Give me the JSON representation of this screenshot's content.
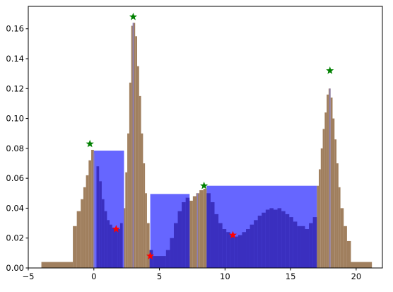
{
  "chart_data": {
    "type": "bar",
    "title": "",
    "xlabel": "",
    "ylabel": "",
    "xlim": [
      -5,
      22
    ],
    "ylim": [
      0,
      0.175
    ],
    "x_ticks": [
      -5,
      0,
      5,
      10,
      15,
      20
    ],
    "y_ticks": [
      0.0,
      0.02,
      0.04,
      0.06,
      0.08,
      0.1,
      0.12,
      0.14,
      0.16
    ],
    "x_tick_labels": [
      "−5",
      "0",
      "5",
      "10",
      "15",
      "20"
    ],
    "y_tick_labels": [
      "0.00",
      "0.02",
      "0.04",
      "0.06",
      "0.08",
      "0.10",
      "0.12",
      "0.14",
      "0.16"
    ],
    "grid": false,
    "colors": {
      "blue_bars": "#0000ff",
      "tan_histogram": "#a0522d",
      "peak_markers": "#008000",
      "valley_markers": "#ff0000"
    },
    "series": [
      {
        "kind": "histogram",
        "color": "#a07f5e",
        "bins": [
          [
            -4.0,
            -1.6,
            0.004
          ],
          [
            -1.6,
            -1.3,
            0.028
          ],
          [
            -1.3,
            -1.0,
            0.038
          ],
          [
            -1.0,
            -0.8,
            0.046
          ],
          [
            -0.8,
            -0.6,
            0.054
          ],
          [
            -0.6,
            -0.4,
            0.062
          ],
          [
            -0.4,
            -0.2,
            0.072
          ],
          [
            -0.2,
            0.0,
            0.079
          ],
          [
            0.0,
            0.2,
            0.077
          ],
          [
            0.2,
            0.4,
            0.068
          ],
          [
            0.4,
            0.6,
            0.058
          ],
          [
            0.6,
            0.8,
            0.046
          ],
          [
            0.8,
            1.0,
            0.038
          ],
          [
            1.0,
            1.2,
            0.032
          ],
          [
            1.2,
            1.4,
            0.029
          ],
          [
            1.4,
            1.6,
            0.027
          ],
          [
            1.6,
            1.8,
            0.025
          ],
          [
            1.8,
            2.0,
            0.026
          ],
          [
            2.0,
            2.2,
            0.03
          ],
          [
            2.2,
            2.4,
            0.04
          ],
          [
            2.4,
            2.55,
            0.064
          ],
          [
            2.55,
            2.7,
            0.09
          ],
          [
            2.7,
            2.85,
            0.124
          ],
          [
            2.85,
            3.0,
            0.162
          ],
          [
            3.0,
            3.15,
            0.164
          ],
          [
            3.15,
            3.3,
            0.155
          ],
          [
            3.3,
            3.45,
            0.135
          ],
          [
            3.45,
            3.6,
            0.115
          ],
          [
            3.6,
            3.75,
            0.09
          ],
          [
            3.75,
            3.9,
            0.07
          ],
          [
            3.9,
            4.05,
            0.05
          ],
          [
            4.05,
            4.25,
            0.03
          ],
          [
            4.25,
            4.5,
            0.012
          ],
          [
            4.5,
            7.3,
            0.008
          ],
          [
            7.3,
            7.55,
            0.045
          ],
          [
            7.55,
            7.8,
            0.048
          ],
          [
            7.8,
            8.05,
            0.05
          ],
          [
            8.05,
            8.35,
            0.052
          ],
          [
            8.35,
            8.6,
            0.053
          ],
          [
            8.6,
            17.0,
            0.004
          ],
          [
            17.0,
            17.15,
            0.055
          ],
          [
            17.15,
            17.3,
            0.066
          ],
          [
            17.3,
            17.45,
            0.08
          ],
          [
            17.45,
            17.6,
            0.093
          ],
          [
            17.6,
            17.75,
            0.104
          ],
          [
            17.75,
            17.9,
            0.116
          ],
          [
            17.9,
            18.05,
            0.12
          ],
          [
            18.05,
            18.2,
            0.114
          ],
          [
            18.2,
            18.35,
            0.1
          ],
          [
            18.35,
            18.5,
            0.086
          ],
          [
            18.5,
            18.65,
            0.07
          ],
          [
            18.65,
            18.8,
            0.054
          ],
          [
            18.8,
            19.05,
            0.04
          ],
          [
            19.05,
            19.3,
            0.028
          ],
          [
            19.3,
            19.6,
            0.018
          ],
          [
            19.6,
            21.2,
            0.004
          ]
        ]
      },
      {
        "kind": "histogram",
        "color": "#6666ff",
        "bins": [
          [
            0.0,
            2.3,
            0.0785
          ],
          [
            4.3,
            7.3,
            0.0495
          ],
          [
            8.6,
            17.0,
            0.055
          ]
        ]
      },
      {
        "kind": "histogram",
        "color": "#3a2fbf",
        "bins": [
          [
            0.2,
            0.4,
            0.068
          ],
          [
            0.4,
            0.6,
            0.058
          ],
          [
            0.6,
            0.8,
            0.046
          ],
          [
            0.8,
            1.0,
            0.038
          ],
          [
            1.0,
            1.2,
            0.032
          ],
          [
            1.2,
            1.4,
            0.029
          ],
          [
            1.4,
            1.6,
            0.027
          ],
          [
            1.6,
            1.8,
            0.025
          ],
          [
            1.8,
            2.0,
            0.026
          ],
          [
            2.0,
            2.2,
            0.03
          ],
          [
            4.25,
            4.5,
            0.012
          ],
          [
            4.5,
            5.5,
            0.008
          ],
          [
            5.5,
            5.8,
            0.012
          ],
          [
            5.8,
            6.1,
            0.02
          ],
          [
            6.1,
            6.4,
            0.03
          ],
          [
            6.4,
            6.7,
            0.038
          ],
          [
            6.7,
            7.0,
            0.044
          ],
          [
            7.0,
            7.3,
            0.047
          ],
          [
            8.6,
            8.9,
            0.05
          ],
          [
            8.9,
            9.2,
            0.044
          ],
          [
            9.2,
            9.5,
            0.036
          ],
          [
            9.5,
            9.8,
            0.03
          ],
          [
            9.8,
            10.1,
            0.026
          ],
          [
            10.1,
            10.4,
            0.024
          ],
          [
            10.4,
            10.7,
            0.022
          ],
          [
            10.7,
            11.0,
            0.021
          ],
          [
            11.0,
            11.3,
            0.022
          ],
          [
            11.3,
            11.6,
            0.024
          ],
          [
            11.6,
            11.9,
            0.026
          ],
          [
            11.9,
            12.2,
            0.029
          ],
          [
            12.2,
            12.5,
            0.032
          ],
          [
            12.5,
            12.8,
            0.035
          ],
          [
            12.8,
            13.1,
            0.037
          ],
          [
            13.1,
            13.4,
            0.039
          ],
          [
            13.4,
            13.7,
            0.04
          ],
          [
            13.7,
            14.0,
            0.039
          ],
          [
            14.0,
            14.3,
            0.04
          ],
          [
            14.3,
            14.6,
            0.038
          ],
          [
            14.6,
            14.9,
            0.036
          ],
          [
            14.9,
            15.2,
            0.034
          ],
          [
            15.2,
            15.5,
            0.031
          ],
          [
            15.5,
            15.8,
            0.028
          ],
          [
            15.8,
            16.1,
            0.028
          ],
          [
            16.1,
            16.4,
            0.026
          ],
          [
            16.4,
            16.7,
            0.03
          ],
          [
            16.7,
            17.0,
            0.034
          ]
        ]
      },
      {
        "kind": "vline",
        "color": "#8c7fb8",
        "lines": [
          [
            0.0,
            0.077
          ],
          [
            3.0,
            0.164
          ],
          [
            7.9,
            0.05
          ],
          [
            18.0,
            0.12
          ]
        ]
      }
    ],
    "peak_markers": {
      "symbol": "star",
      "color": "#008000",
      "points": [
        [
          -0.3,
          0.083
        ],
        [
          3.0,
          0.168
        ],
        [
          8.4,
          0.055
        ],
        [
          18.0,
          0.132
        ]
      ]
    },
    "valley_markers": {
      "symbol": "star",
      "color": "#ff0000",
      "points": [
        [
          1.7,
          0.026
        ],
        [
          4.3,
          0.008
        ],
        [
          10.6,
          0.022
        ]
      ]
    }
  }
}
